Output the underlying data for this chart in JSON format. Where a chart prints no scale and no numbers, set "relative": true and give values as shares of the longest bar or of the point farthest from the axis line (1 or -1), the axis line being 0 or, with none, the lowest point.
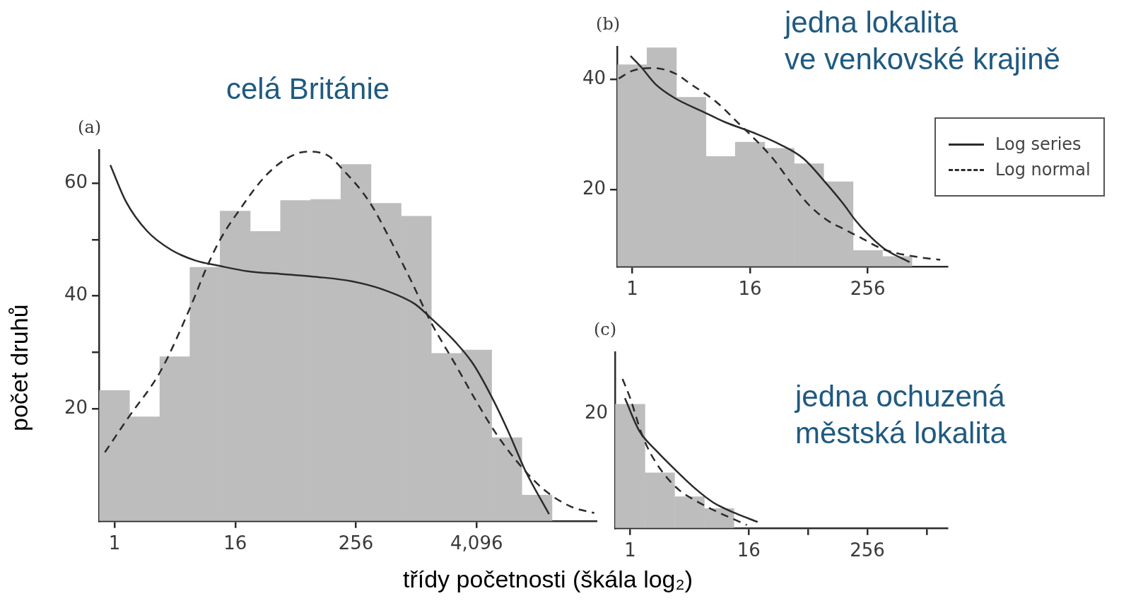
{
  "chart_data": [
    {
      "type": "histogram",
      "title": "celá Británie",
      "xlabel": "třídy početnosti (škála log₂)",
      "ylabel": "počet druhů",
      "annotations": [
        "(a)"
      ],
      "log": "x",
      "xlim": [
        0.707,
        65536
      ],
      "xticks": [
        1,
        16,
        256,
        {
          "value": 4096,
          "label": "4,096"
        }
      ],
      "ylim": [
        0,
        66
      ],
      "yticks": [
        20,
        {
          "value": 30,
          "label": null
        },
        40,
        {
          "value": 50,
          "label": null
        },
        60
      ],
      "series": [
        {
          "color": "#bdbdbd",
          "bins": [
            0.707,
            1.41,
            2.83,
            5.66,
            11.3,
            22.6,
            45.3,
            90.5,
            181,
            362,
            724,
            1448,
            2896,
            5793,
            11585,
            23170
          ],
          "values": [
            23.2,
            18.5,
            29.2,
            45.1,
            55.1,
            51.5,
            57.0,
            57.2,
            63.4,
            56.5,
            54.2,
            29.8,
            30.4,
            14.8,
            4.6
          ]
        },
        {
          "type": "line",
          "color": "#2b2b2b",
          "line_style": "solid",
          "marker": "none",
          "x": [
            0.908,
            1.3,
            2.1,
            3.68,
            6.45,
            10.9,
            21.4,
            47.5,
            105,
            236,
            523,
            989,
            1448,
            2521,
            3822,
            6208,
            8780,
            12417,
            21619
          ],
          "values": [
            63.3,
            56.8,
            51.6,
            48.2,
            46.3,
            45.4,
            44.4,
            43.9,
            43.4,
            42.6,
            40.9,
            38.6,
            36.0,
            31.8,
            27.8,
            21.0,
            15.3,
            9.1,
            1.2
          ]
        },
        {
          "type": "line",
          "color": "#2b2b2b",
          "line_style": "dashed",
          "marker": "none",
          "x": [
            0.801,
            1.35,
            2.89,
            5.7,
            8.17,
            11.2,
            18.1,
            31.8,
            51.6,
            83.3,
            134,
            185,
            350,
            568,
            916,
            1448,
            2521,
            3822,
            6208,
            10086,
            18820,
            35120,
            61147
          ],
          "values": [
            12.2,
            18.2,
            26.7,
            38.0,
            44.8,
            49.9,
            55.6,
            61.3,
            64.4,
            65.7,
            65.0,
            62.7,
            56.7,
            49.9,
            42.6,
            35.2,
            27.8,
            22.1,
            15.9,
            10.8,
            5.7,
            2.6,
            1.4
          ]
        }
      ]
    },
    {
      "type": "histogram",
      "title": "jedna lokalita\nve venkovské krajině",
      "annotations": [
        "(b)"
      ],
      "legend": "right",
      "log": "x",
      "xlim": [
        0.707,
        1660
      ],
      "xticks": [
        1,
        16,
        256
      ],
      "ylim": [
        6,
        46
      ],
      "yticks": [
        20,
        40
      ],
      "series": [
        {
          "color": "#bdbdbd",
          "bins": [
            0.707,
            1.41,
            2.83,
            5.66,
            11.3,
            22.6,
            45.3,
            90.5,
            181,
            362,
            724
          ],
          "values": [
            42.7,
            45.8,
            36.8,
            26.0,
            28.6,
            27.5,
            24.7,
            21.4,
            8.9,
            7.8
          ]
        },
        {
          "type": "line",
          "name": "Log series",
          "color": "#2b2b2b",
          "line_style": "solid",
          "marker": "none",
          "x": [
            0.959,
            1.23,
            1.72,
            2.68,
            5.21,
            9.06,
            17.6,
            32.4,
            56.5,
            93.1,
            145,
            191,
            252,
            372,
            580,
            685
          ],
          "values": [
            44.3,
            42.3,
            39.2,
            36.7,
            34.2,
            32.2,
            30.3,
            28.2,
            25.6,
            21.4,
            17.3,
            14.4,
            12.0,
            9.3,
            7.4,
            6.8
          ]
        },
        {
          "type": "line",
          "name": "Log normal",
          "color": "#2b2b2b",
          "line_style": "dashed",
          "marker": "none",
          "x": [
            0.727,
            1,
            1.62,
            2.68,
            3.95,
            7.26,
            12.6,
            17.6,
            27.5,
            42.8,
            63.1,
            98.4,
            145,
            202,
            372,
            765,
            1409
          ],
          "values": [
            40.2,
            41.6,
            42.1,
            41.2,
            39.2,
            35.9,
            31.8,
            29.3,
            25.6,
            21.0,
            17.3,
            14.4,
            12.8,
            11.5,
            9.1,
            7.8,
            7.2
          ]
        }
      ]
    },
    {
      "type": "histogram",
      "title": "jedna ochuzená městská lokalita",
      "annotations": [
        "(c)",
        "20"
      ],
      "relative": true,
      "log": "x",
      "xlim": [
        0.707,
        1660
      ],
      "xticks": [
        1,
        16,
        {
          "value": 64,
          "label": null
        },
        256,
        {
          "value": 1024,
          "label": null
        }
      ],
      "series": [
        {
          "color": "#bdbdbd",
          "bins": [
            0.707,
            1.41,
            2.83,
            5.66,
            11.3
          ],
          "values": [
            0.83,
            0.37,
            0.21,
            0.13
          ]
        },
        {
          "type": "line",
          "color": "#2b2b2b",
          "line_style": "solid",
          "marker": "none",
          "x": [
            0.883,
            1.24,
            1.83,
            2.87,
            4.47,
            7.01,
            11.6,
            19.7
          ],
          "values": [
            0.87,
            0.65,
            0.52,
            0.39,
            0.27,
            0.17,
            0.1,
            0.04
          ]
        },
        {
          "type": "line",
          "color": "#2b2b2b",
          "line_style": "dashed",
          "marker": "none",
          "x": [
            0.835,
            1,
            1.31,
            1.64,
            2.28,
            3.2,
            4.72,
            7.01,
            10.3,
            15.3
          ],
          "values": [
            1,
            0.87,
            0.63,
            0.49,
            0.35,
            0.25,
            0.18,
            0.12,
            0.07,
            0.02
          ]
        }
      ]
    }
  ]
}
